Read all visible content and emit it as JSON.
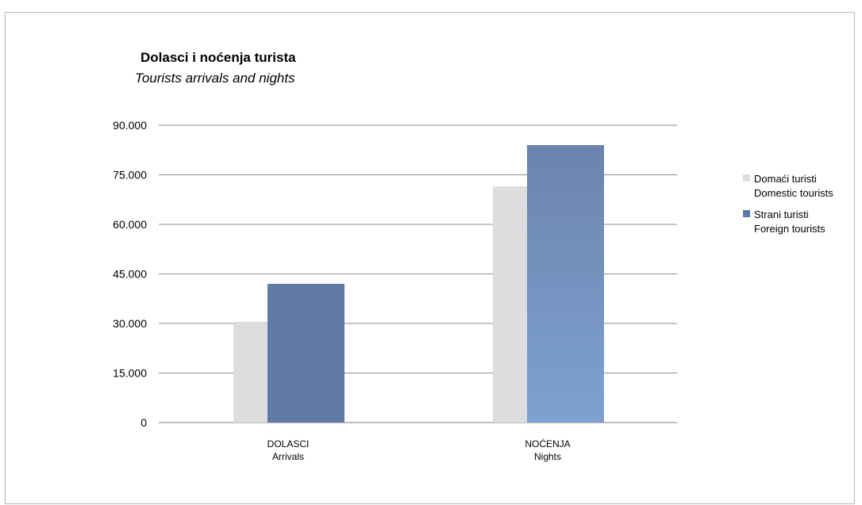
{
  "chart_data": {
    "type": "bar",
    "title": "Dolasci i noćenja turista",
    "subtitle": "Tourists arrivals and nights",
    "categories": [
      {
        "label_local": "DOLASCI",
        "label_en": "Arrivals"
      },
      {
        "label_local": "NOĆENJA",
        "label_en": "Nights"
      }
    ],
    "series": [
      {
        "name_local": "Domaći turisti",
        "name_en": "Domestic tourists",
        "color": "#dcdddf",
        "values": [
          30500,
          71500
        ]
      },
      {
        "name_local": "Strani turisti",
        "name_en": "Foreign tourists",
        "color": "#5f7aa6",
        "values": [
          42000,
          84000
        ]
      }
    ],
    "yticks": [
      "0",
      "15.000",
      "30.000",
      "45.000",
      "60.000",
      "75.000",
      "90.000"
    ],
    "ylim": [
      0,
      90000
    ],
    "grid": true,
    "legend_position": "right"
  }
}
